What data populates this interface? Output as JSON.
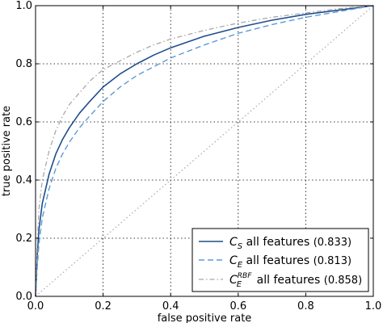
{
  "chart_data": {
    "type": "line",
    "xlabel": "false positive rate",
    "ylabel": "true positive rate",
    "xlim": [
      0.0,
      1.0
    ],
    "ylim": [
      0.0,
      1.0
    ],
    "xticks": [
      "0.0",
      "0.2",
      "0.4",
      "0.6",
      "0.8",
      "1.0"
    ],
    "yticks": [
      "0.0",
      "0.2",
      "0.4",
      "0.6",
      "0.8",
      "1.0"
    ],
    "grid": true,
    "legend_position": "lower-right",
    "colors": {
      "cs": "#1f4e8c",
      "ce": "#5b9bd5",
      "ce_rbf": "#a9a9a9",
      "diagonal": "#a9a9a9"
    },
    "series": [
      {
        "name": "C_S all features",
        "label_sym": "C",
        "label_sub": "S",
        "label_sup": "",
        "label_text": " all features ",
        "auc": "(0.833)",
        "style": "solid",
        "x": [
          0,
          0.005,
          0.01,
          0.02,
          0.04,
          0.06,
          0.08,
          0.1,
          0.13,
          0.16,
          0.2,
          0.25,
          0.3,
          0.35,
          0.4,
          0.5,
          0.6,
          0.7,
          0.8,
          0.9,
          1.0
        ],
        "y": [
          0,
          0.14,
          0.23,
          0.32,
          0.42,
          0.49,
          0.54,
          0.58,
          0.63,
          0.67,
          0.72,
          0.765,
          0.8,
          0.83,
          0.855,
          0.895,
          0.925,
          0.95,
          0.97,
          0.985,
          1.0
        ]
      },
      {
        "name": "C_E all features",
        "label_sym": "C",
        "label_sub": "E",
        "label_sup": "",
        "label_text": " all features ",
        "auc": "(0.813)",
        "style": "dashed",
        "x": [
          0,
          0.005,
          0.01,
          0.02,
          0.04,
          0.06,
          0.08,
          0.1,
          0.13,
          0.16,
          0.2,
          0.25,
          0.3,
          0.35,
          0.4,
          0.5,
          0.6,
          0.7,
          0.8,
          0.9,
          1.0
        ],
        "y": [
          0,
          0.1,
          0.18,
          0.27,
          0.37,
          0.44,
          0.49,
          0.53,
          0.58,
          0.62,
          0.67,
          0.72,
          0.76,
          0.79,
          0.82,
          0.865,
          0.905,
          0.935,
          0.96,
          0.98,
          1.0
        ]
      },
      {
        "name": "C_E^RBF all features",
        "label_sym": "C",
        "label_sub": "E",
        "label_sup": "RBF",
        "label_text": " all features ",
        "auc": "(0.858)",
        "style": "dashdot",
        "x": [
          0,
          0.005,
          0.01,
          0.02,
          0.04,
          0.06,
          0.08,
          0.1,
          0.13,
          0.16,
          0.2,
          0.25,
          0.3,
          0.35,
          0.4,
          0.5,
          0.6,
          0.7,
          0.8,
          0.9,
          1.0
        ],
        "y": [
          0,
          0.18,
          0.3,
          0.4,
          0.5,
          0.57,
          0.62,
          0.66,
          0.7,
          0.74,
          0.78,
          0.81,
          0.84,
          0.865,
          0.885,
          0.915,
          0.94,
          0.96,
          0.975,
          0.99,
          1.0
        ]
      }
    ]
  }
}
